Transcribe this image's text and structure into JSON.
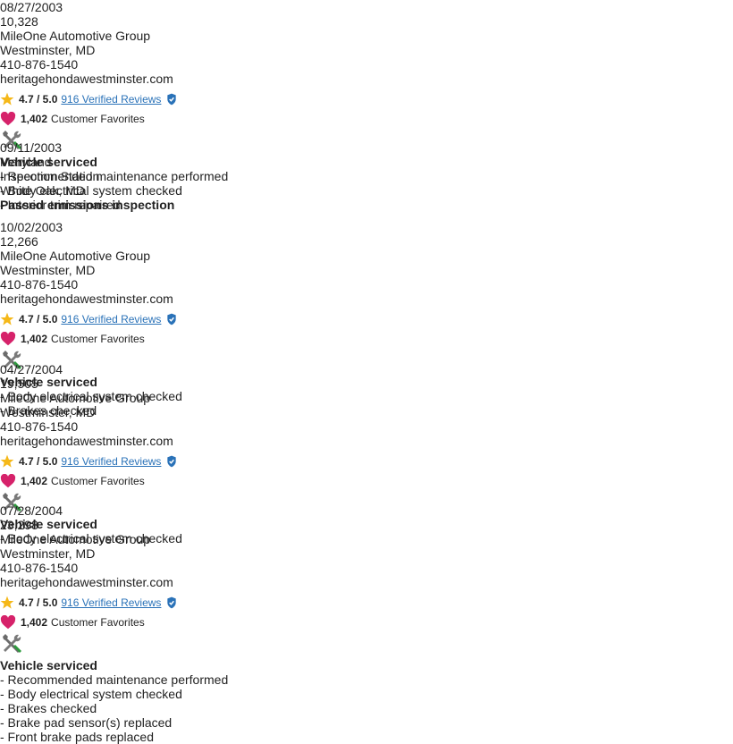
{
  "records": [
    {
      "date": "08/27/2003",
      "mileage": "10,328",
      "source": [
        "MileOne Automotive Group",
        "Westminster, MD",
        "410-876-1540",
        "heritagehondawestminster.com"
      ],
      "rating": {
        "score": "4.7 / 5.0",
        "reviews": "916 Verified Reviews",
        "favorites": "1,402",
        "favorites_label": "Customer Favorites"
      },
      "details": {
        "title": "Vehicle serviced",
        "items": [
          "- Recommended maintenance performed",
          "- Body electrical system checked",
          "- Interior trim repaired"
        ]
      }
    },
    {
      "date": "09/11/2003",
      "source": [
        "Maryland",
        "Inspection Station",
        "White Oak, MD"
      ],
      "details": {
        "title": "Passed emissions inspection",
        "items": []
      }
    },
    {
      "date": "10/02/2003",
      "mileage": "12,266",
      "source": [
        "MileOne Automotive Group",
        "Westminster, MD",
        "410-876-1540",
        "heritagehondawestminster.com"
      ],
      "rating": {
        "score": "4.7 / 5.0",
        "reviews": "916 Verified Reviews",
        "favorites": "1,402",
        "favorites_label": "Customer Favorites"
      },
      "details": {
        "title": "Vehicle serviced",
        "items": [
          "- Body electrical system checked",
          "- Brakes checked"
        ]
      }
    },
    {
      "date": "04/27/2004",
      "mileage": "19,505",
      "source": [
        "MileOne Automotive Group",
        "Westminster, MD",
        "410-876-1540",
        "heritagehondawestminster.com"
      ],
      "rating": {
        "score": "4.7 / 5.0",
        "reviews": "916 Verified Reviews",
        "favorites": "1,402",
        "favorites_label": "Customer Favorites"
      },
      "details": {
        "title": "Vehicle serviced",
        "items": [
          "- Body electrical system checked"
        ]
      }
    },
    {
      "date": "07/28/2004",
      "mileage": "23,298",
      "source": [
        "MileOne Automotive Group",
        "Westminster, MD",
        "410-876-1540",
        "heritagehondawestminster.com"
      ],
      "rating": {
        "score": "4.7 / 5.0",
        "reviews": "916 Verified Reviews",
        "favorites": "1,402",
        "favorites_label": "Customer Favorites"
      },
      "details": {
        "title": "Vehicle serviced",
        "items": [
          "- Recommended maintenance performed",
          "- Body electrical system checked",
          "- Brakes checked",
          "- Brake pad sensor(s) replaced",
          "- Front brake pads replaced"
        ]
      }
    }
  ]
}
